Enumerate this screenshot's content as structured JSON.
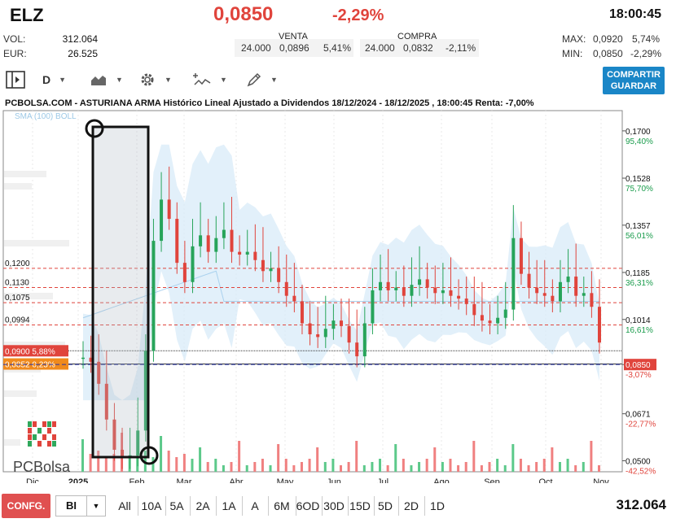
{
  "header": {
    "symbol": "ELZ",
    "last_price": "0,0850",
    "change_pct": "-2,29%",
    "clock": "18:00:45",
    "vol_label": "VOL:",
    "vol_value": "312.064",
    "eur_label": "EUR:",
    "eur_value": "26.525",
    "max_label": "MAX:",
    "max_value": "0,0920",
    "max_pct": "5,74%",
    "min_label": "MIN:",
    "min_value": "0,0850",
    "min_pct": "-2,29%"
  },
  "order_book": {
    "venta_label": "VENTA",
    "venta_qty": "24.000",
    "venta_price": "0,0896",
    "venta_pct": "5,41%",
    "compra_label": "COMPRA",
    "compra_qty": "24.000",
    "compra_price": "0,0832",
    "compra_pct": "-2,11%"
  },
  "toolbar": {
    "period": "D",
    "chart_type_icon": "area-chart-icon",
    "settings_icon": "gear-icon",
    "indicators_icon": "indicator-line-icon",
    "draw_icon": "pencil-icon",
    "share_line1": "COMPARTIR",
    "share_line2": "GUARDAR"
  },
  "chart_title": "PCBOLSA.COM - ASTURIANA ARMA Histórico Lineal Ajustado a Dividendos 18/12/2024 - 18/12/2025 , 18:00:45 Renta: -7,00%",
  "sma_label": "SMA (100) BOLL",
  "logo_text": "PCBolsa",
  "chart_data": {
    "type": "line",
    "title": "PCBOLSA.COM - ASTURIANA ARMA Histórico Lineal Ajustado a Dividendos 18/12/2024 - 18/12/2025 , 18:00:45 Renta: -7,00%",
    "x_labels": [
      "Dic",
      "2025",
      "Feb",
      "Mar",
      "Abr",
      "May",
      "Jun",
      "Jul",
      "Ago",
      "Sep",
      "Oct",
      "Nov"
    ],
    "right_axis": [
      {
        "price": "0,1700",
        "pct": "95,40%"
      },
      {
        "price": "0,1528",
        "pct": "75,70%"
      },
      {
        "price": "0,1357",
        "pct": "56,01%"
      },
      {
        "price": "0,1185",
        "pct": "36,31%"
      },
      {
        "price": "0,1014",
        "pct": "16,61%"
      },
      {
        "price": "0,0850",
        "pct": "-3,07%"
      },
      {
        "price": "0,0671",
        "pct": "-22,77%"
      },
      {
        "price": "0,0500",
        "pct": "-42,52%"
      }
    ],
    "left_levels": [
      "0,1200",
      "0,1130",
      "0,1075",
      "0,0994"
    ],
    "tags": [
      {
        "price": "0,0900",
        "pct": "5,88%",
        "color": "#e0443c"
      },
      {
        "price": "0,0852",
        "pct": "0,23%",
        "color": "#f08a1c"
      }
    ],
    "current_tag": {
      "price": "0,0850",
      "color": "#e0443c"
    },
    "ylim": [
      0.046,
      0.175
    ],
    "series": [
      {
        "name": "ASTURIANA ARMA",
        "points": [
          [
            "Dic",
            0.0875
          ],
          [
            "Dic",
            0.086
          ],
          [
            "Dic",
            0.078
          ],
          [
            "Dic",
            0.065
          ],
          [
            "Dic",
            0.054
          ],
          [
            "Dic",
            0.051
          ],
          [
            "2025",
            0.052
          ],
          [
            "2025",
            0.061
          ],
          [
            "2025",
            0.09
          ],
          [
            "2025",
            0.13
          ],
          [
            "2025",
            0.145
          ],
          [
            "2025",
            0.138
          ],
          [
            "2025",
            0.122
          ],
          [
            "Feb",
            0.115
          ],
          [
            "Feb",
            0.128
          ],
          [
            "Feb",
            0.132
          ],
          [
            "Feb",
            0.126
          ],
          [
            "Feb",
            0.131
          ],
          [
            "Feb",
            0.134
          ],
          [
            "Feb",
            0.126
          ],
          [
            "Feb",
            0.125
          ],
          [
            "Mar",
            0.126
          ],
          [
            "Mar",
            0.123
          ],
          [
            "Mar",
            0.119
          ],
          [
            "Mar",
            0.12
          ],
          [
            "Mar",
            0.115
          ],
          [
            "Mar",
            0.11
          ],
          [
            "Abr",
            0.108
          ],
          [
            "Abr",
            0.1
          ],
          [
            "Abr",
            0.096
          ],
          [
            "Abr",
            0.095
          ],
          [
            "Abr",
            0.098
          ],
          [
            "Abr",
            0.101
          ],
          [
            "May",
            0.099
          ],
          [
            "May",
            0.093
          ],
          [
            "May",
            0.088
          ],
          [
            "May",
            0.1
          ],
          [
            "May",
            0.112
          ],
          [
            "May",
            0.115
          ],
          [
            "Jun",
            0.112
          ],
          [
            "Jun",
            0.113
          ],
          [
            "Jun",
            0.11
          ],
          [
            "Jun",
            0.114
          ],
          [
            "Jun",
            0.116
          ],
          [
            "Jul",
            0.113
          ],
          [
            "Jul",
            0.111
          ],
          [
            "Jul",
            0.112
          ],
          [
            "Jul",
            0.11
          ],
          [
            "Jul",
            0.109
          ],
          [
            "Ago",
            0.107
          ],
          [
            "Ago",
            0.103
          ],
          [
            "Ago",
            0.101
          ],
          [
            "Ago",
            0.1
          ],
          [
            "Ago",
            0.102
          ],
          [
            "Sep",
            0.105
          ],
          [
            "Sep",
            0.131
          ],
          [
            "Sep",
            0.118
          ],
          [
            "Sep",
            0.113
          ],
          [
            "Sep",
            0.111
          ],
          [
            "Oct",
            0.11
          ],
          [
            "Oct",
            0.108
          ],
          [
            "Oct",
            0.115
          ],
          [
            "Oct",
            0.117
          ],
          [
            "Oct",
            0.11
          ],
          [
            "Nov",
            0.111
          ],
          [
            "Nov",
            0.106
          ],
          [
            "Nov",
            0.093
          ]
        ]
      }
    ]
  },
  "bottom_bar": {
    "config_label": "CONFG.",
    "selector_value": "BI",
    "ranges": [
      "All",
      "10A",
      "5A",
      "2A",
      "1A",
      "A",
      "6M",
      "6OD",
      "30D",
      "15D",
      "5D",
      "2D",
      "1D"
    ],
    "total_volume": "312.064"
  }
}
